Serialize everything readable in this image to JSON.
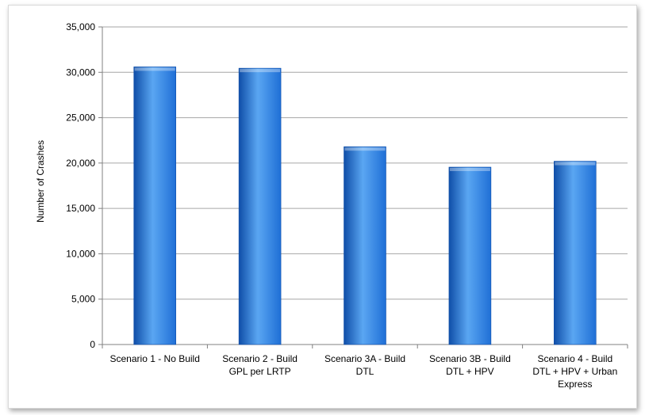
{
  "chart_data": {
    "type": "bar",
    "title": "",
    "xlabel": "",
    "ylabel": "Number of Crashes",
    "ylim": [
      0,
      35000
    ],
    "yticks": [
      0,
      5000,
      10000,
      15000,
      20000,
      25000,
      30000,
      35000
    ],
    "ytick_labels": [
      "0",
      "5,000",
      "10,000",
      "15,000",
      "20,000",
      "25,000",
      "30,000",
      "35,000"
    ],
    "grid": true,
    "legend": "none",
    "categories": [
      [
        "Scenario 1 - No Build"
      ],
      [
        "Scenario 2 - Build",
        "GPL per LRTP"
      ],
      [
        "Scenario 3A - Build",
        "DTL"
      ],
      [
        "Scenario 3B - Build",
        "DTL + HPV"
      ],
      [
        "Scenario 4 - Build",
        "DTL + HPV + Urban",
        "Express"
      ]
    ],
    "values": [
      30600,
      30450,
      21800,
      19550,
      20200
    ],
    "bar_color": "#1f6fd6",
    "bar_color_light": "#5aa6f2",
    "bar_color_dark": "#0f4ea8",
    "grid_color": "#a6a6a6"
  }
}
